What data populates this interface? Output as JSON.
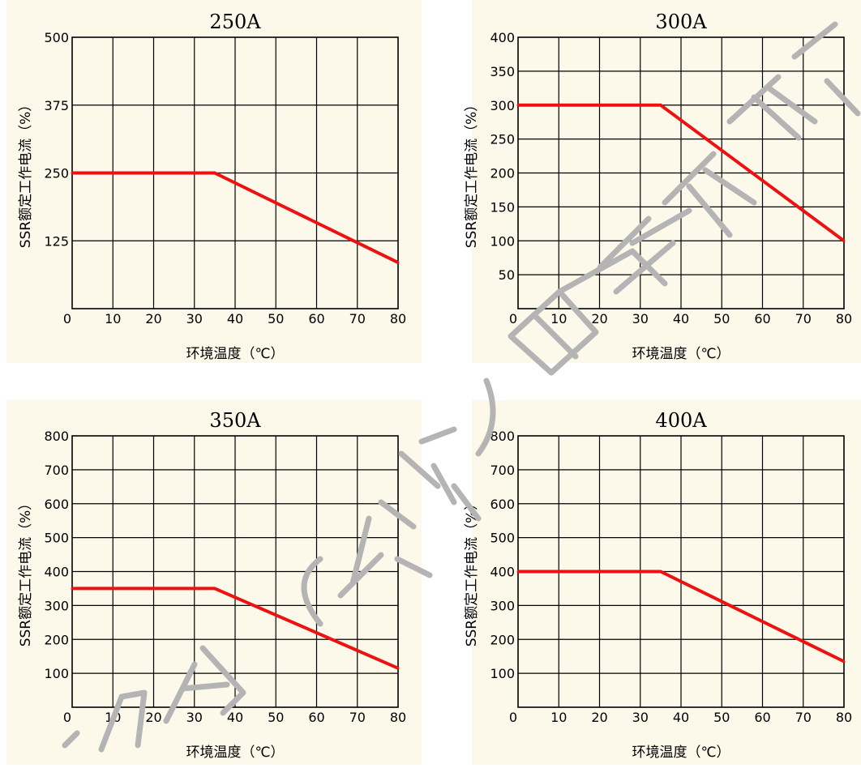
{
  "chart_data": [
    {
      "type": "line",
      "title": "250A",
      "xlabel": "环境温度（℃）",
      "ylabel": "SSR额定工作电流（%）",
      "xlim": [
        0,
        80
      ],
      "ylim": [
        0,
        500
      ],
      "x_ticks": [
        0,
        10,
        20,
        30,
        40,
        50,
        60,
        70,
        80
      ],
      "y_ticks": [
        125,
        250,
        375,
        500
      ],
      "grid": true,
      "series": [
        {
          "x": [
            0,
            35,
            80
          ],
          "y": [
            250,
            250,
            85
          ]
        }
      ]
    },
    {
      "type": "line",
      "title": "300A",
      "xlabel": "环境温度（℃）",
      "ylabel": "SSR额定工作电流（%）",
      "xlim": [
        0,
        80
      ],
      "ylim": [
        0,
        400
      ],
      "x_ticks": [
        0,
        10,
        20,
        30,
        40,
        50,
        60,
        70,
        80
      ],
      "y_ticks": [
        50,
        100,
        150,
        200,
        250,
        300,
        350,
        400
      ],
      "grid": true,
      "series": [
        {
          "x": [
            0,
            35,
            80
          ],
          "y": [
            300,
            300,
            100
          ]
        }
      ]
    },
    {
      "type": "line",
      "title": "350A",
      "xlabel": "环境温度（℃）",
      "ylabel": "SSR额定工作电流（%）",
      "xlim": [
        0,
        80
      ],
      "ylim": [
        0,
        800
      ],
      "x_ticks": [
        0,
        10,
        20,
        30,
        40,
        50,
        60,
        70,
        80
      ],
      "y_ticks": [
        100,
        200,
        300,
        400,
        500,
        600,
        700,
        800
      ],
      "grid": true,
      "series": [
        {
          "x": [
            0,
            35,
            80
          ],
          "y": [
            350,
            350,
            115
          ]
        }
      ]
    },
    {
      "type": "line",
      "title": "400A",
      "xlabel": "环境温度（℃）",
      "ylabel": "SSR额定工作电流（%）",
      "xlim": [
        0,
        80
      ],
      "ylim": [
        0,
        800
      ],
      "x_ticks": [
        0,
        10,
        20,
        30,
        40,
        50,
        60,
        70,
        80
      ],
      "y_ticks": [
        100,
        200,
        300,
        400,
        500,
        600,
        700,
        800
      ],
      "grid": true,
      "series": [
        {
          "x": [
            0,
            35,
            80
          ],
          "y": [
            400,
            400,
            135
          ]
        }
      ]
    }
  ],
  "colors": {
    "panel_background": "#fdf9ea",
    "line": "#ee1111",
    "grid": "#000000",
    "watermark": "#b4b4b4"
  }
}
